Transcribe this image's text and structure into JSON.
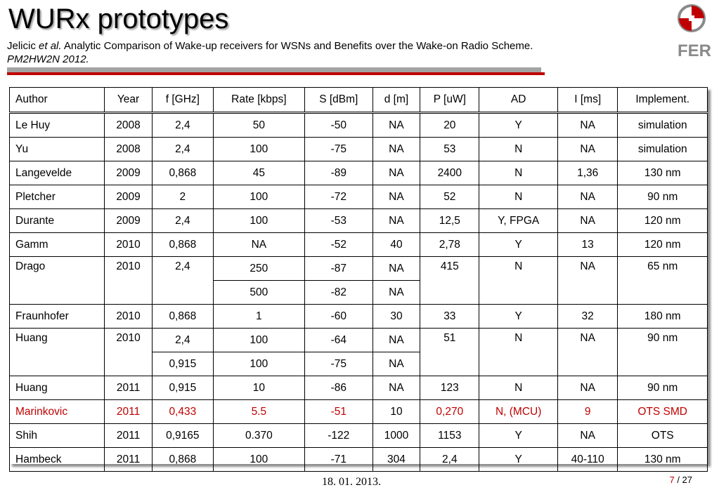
{
  "slide": {
    "title": "WURx prototypes",
    "subtitle": {
      "author": "Jelicic ",
      "etal": "et al.",
      "text": " Analytic Comparison of Wake-up receivers for WSNs and Benefits over the Wake-on Radio Scheme.",
      "venue": "PM2HW2N 2012."
    },
    "logo_text": "FER",
    "footer_date": "18. 01. 2013.",
    "page_current": "7",
    "page_total": " / 27",
    "highlight_color": "#c00000"
  },
  "table": {
    "headers": [
      "Author",
      "Year",
      "f [GHz]",
      "Rate [kbps]",
      "S [dBm]",
      "d [m]",
      "P [uW]",
      "AD",
      "I [ms]",
      "Implement."
    ],
    "rows": [
      [
        "Le Huy",
        "2008",
        "2,4",
        "50",
        "-50",
        "NA",
        "20",
        "Y",
        "NA",
        "simulation"
      ],
      [
        "Yu",
        "2008",
        "2,4",
        "100",
        "-75",
        "NA",
        "53",
        "N",
        "NA",
        "simulation"
      ],
      [
        "Langevelde",
        "2009",
        "0,868",
        "45",
        "-89",
        "NA",
        "2400",
        "N",
        "1,36",
        "130 nm"
      ],
      [
        "Pletcher",
        "2009",
        "2",
        "100",
        "-72",
        "NA",
        "52",
        "N",
        "NA",
        "90 nm"
      ],
      [
        "Durante",
        "2009",
        "2,4",
        "100",
        "-53",
        "NA",
        "12,5",
        "Y, FPGA",
        "NA",
        "120 nm"
      ],
      [
        "Gamm",
        "2010",
        "0,868",
        "NA",
        "-52",
        "40",
        "2,78",
        "Y",
        "13",
        "120 nm"
      ],
      [
        "Drago",
        "2010",
        "2,4",
        "250",
        "-87",
        "NA",
        "415",
        "N",
        "NA",
        "65 nm"
      ],
      [
        "500",
        "-82",
        "NA"
      ],
      [
        "Fraunhofer",
        "2010",
        "0,868",
        "1",
        "-60",
        "30",
        "33",
        "Y",
        "32",
        "180 nm"
      ],
      [
        "Huang",
        "2010",
        "2,4",
        "100",
        "-64",
        "NA",
        "51",
        "N",
        "NA",
        "90 nm"
      ],
      [
        "0,915",
        "100",
        "-75",
        "NA"
      ],
      [
        "Huang",
        "2011",
        "0,915",
        "10",
        "-86",
        "NA",
        "123",
        "N",
        "NA",
        "90 nm"
      ],
      [
        "Marinkovic",
        "2011",
        "0,433",
        "5.5",
        "-51",
        "10",
        "0,270",
        "N, (MCU)",
        "9",
        "OTS SMD"
      ],
      [
        "Shih",
        "2011",
        "0,9165",
        "0.370",
        "-122",
        "1000",
        "1153",
        "Y",
        "NA",
        "OTS"
      ],
      [
        "Hambeck",
        "2011",
        "0,868",
        "100",
        "-71",
        "304",
        "2,4",
        "Y",
        "40-110",
        "130 nm"
      ]
    ]
  }
}
